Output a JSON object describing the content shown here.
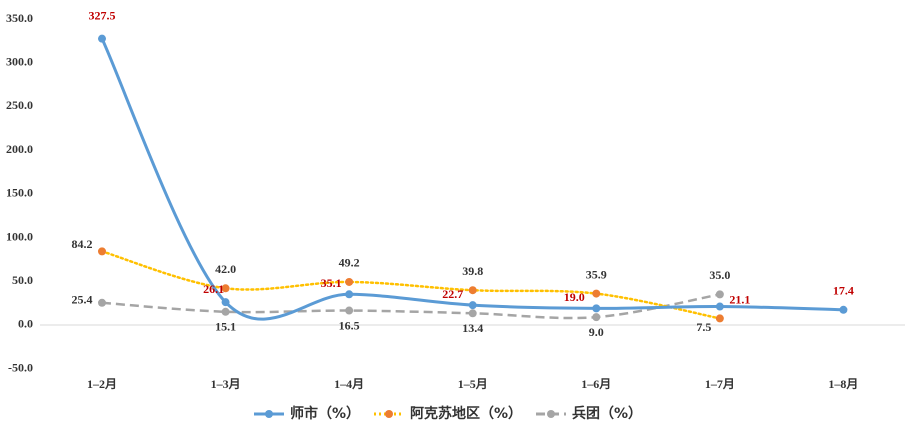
{
  "chart_data": {
    "type": "line",
    "categories": [
      "1–2月",
      "1–3月",
      "1–4月",
      "1–5月",
      "1–6月",
      "1–7月",
      "1–8月"
    ],
    "series": [
      {
        "name": "师市（%）",
        "color": "#5b9bd5",
        "marker_color": "#5b9bd5",
        "dash": "solid",
        "label_color": "#c00000",
        "values": [
          327.5,
          26.1,
          35.1,
          22.7,
          19.0,
          21.1,
          17.4
        ],
        "value_labels": [
          "327.5",
          "26.1",
          "35.1",
          "22.7",
          "19.0",
          "21.1",
          "17.4"
        ]
      },
      {
        "name": "阿克苏地区（%）",
        "color": "#ffc000",
        "marker_color": "#ed7d31",
        "dash": "dotted",
        "label_color": "#333333",
        "values": [
          84.2,
          42.0,
          49.2,
          39.8,
          35.9,
          7.5,
          null
        ],
        "value_labels": [
          "84.2",
          "42.0",
          "49.2",
          "39.8",
          "35.9",
          "7.5",
          null
        ]
      },
      {
        "name": "兵团（%）",
        "color": "#a5a5a5",
        "marker_color": "#a5a5a5",
        "dash": "dashed",
        "label_color": "#333333",
        "values": [
          25.4,
          15.1,
          16.5,
          13.4,
          9.0,
          35.0,
          null
        ],
        "value_labels": [
          "25.4",
          "15.1",
          "16.5",
          "13.4",
          "9.0",
          "35.0",
          null
        ]
      }
    ],
    "ylim": [
      -50,
      350
    ],
    "yticks": [
      {
        "value": -50,
        "label": "-50.0"
      },
      {
        "value": 0,
        "label": "0.0"
      },
      {
        "value": 50,
        "label": "50.0"
      },
      {
        "value": 100,
        "label": "100.0"
      },
      {
        "value": 150,
        "label": "150.0"
      },
      {
        "value": 200,
        "label": "200.0"
      },
      {
        "value": 250,
        "label": "250.0"
      },
      {
        "value": 300,
        "label": "300.0"
      },
      {
        "value": 350,
        "label": "350.0"
      }
    ],
    "grid": false,
    "legend": "bottom"
  }
}
